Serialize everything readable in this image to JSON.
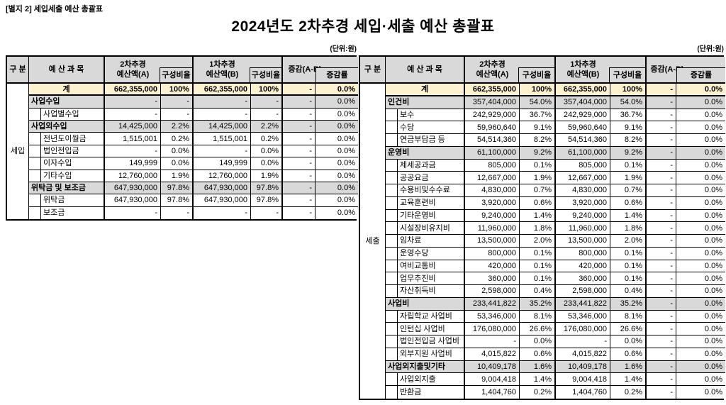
{
  "page": {
    "doc_ref": "[별지 2] 세입세출 예산 총괄표",
    "title": "2024년도 2차추경 세입·세출 예산 총괄표",
    "unit_label": "(단위:원)"
  },
  "colors": {
    "header_bg": "#d9d9d9",
    "group_row_bg": "#d9d9d9",
    "total_row_bg": "#fdf2cf",
    "border": "#000000"
  },
  "header_labels": {
    "gubun": "구 분",
    "category": "예 산 과 목",
    "col_a_line1": "2차추경",
    "col_a_line2": "예산액(A)",
    "ratio": "구성비율",
    "col_b_line1": "1차추경",
    "col_b_line2": "예산액(B)",
    "diff": "증감(A-B)",
    "diff_rate": "증감률"
  },
  "tables": [
    {
      "id": "revenue",
      "gubun": "세입",
      "rows": [
        {
          "type": "total",
          "label": "계",
          "a": "662,355,000",
          "ar": "100%",
          "b": "662,355,000",
          "br": "100%",
          "diff": "-",
          "rate": "0.0%"
        },
        {
          "type": "group",
          "label": "사업수입",
          "a": "-",
          "ar": "-",
          "b": "-",
          "br": "-",
          "diff": "-",
          "rate": "0.0%"
        },
        {
          "type": "child",
          "label": "사업별수입",
          "a": "-",
          "ar": "-",
          "b": "-",
          "br": "-",
          "diff": "-",
          "rate": "0.0%"
        },
        {
          "type": "group",
          "label": "사업외수입",
          "a": "14,425,000",
          "ar": "2.2%",
          "b": "14,425,000",
          "br": "2.2%",
          "diff": "-",
          "rate": "0.0%"
        },
        {
          "type": "child",
          "label": "전년도이월금",
          "a": "1,515,001",
          "ar": "0.2%",
          "b": "1,515,001",
          "br": "0.2%",
          "diff": "-",
          "rate": "0.0%"
        },
        {
          "type": "child",
          "label": "법인전입금",
          "a": "-",
          "ar": "0.0%",
          "b": "-",
          "br": "0.0%",
          "diff": "-",
          "rate": "0.0%"
        },
        {
          "type": "child",
          "label": "이자수입",
          "a": "149,999",
          "ar": "0.0%",
          "b": "149,999",
          "br": "0.0%",
          "diff": "-",
          "rate": "0.0%"
        },
        {
          "type": "child",
          "label": "기타수입",
          "a": "12,760,000",
          "ar": "1.9%",
          "b": "12,760,000",
          "br": "1.9%",
          "diff": "-",
          "rate": "0.0%"
        },
        {
          "type": "group",
          "label": "위탁금 및 보조금",
          "a": "647,930,000",
          "ar": "97.8%",
          "b": "647,930,000",
          "br": "97.8%",
          "diff": "-",
          "rate": "0.0%"
        },
        {
          "type": "child",
          "label": "위탁금",
          "a": "647,930,000",
          "ar": "97.8%",
          "b": "647,930,000",
          "br": "97.8%",
          "diff": "-",
          "rate": "0.0%"
        },
        {
          "type": "child",
          "label": "보조금",
          "a": "-",
          "ar": "-",
          "b": "-",
          "br": "-",
          "diff": "-",
          "rate": "0.0%"
        }
      ]
    },
    {
      "id": "expenditure",
      "gubun": "세출",
      "rows": [
        {
          "type": "total",
          "label": "계",
          "a": "662,355,000",
          "ar": "100%",
          "b": "662,355,000",
          "br": "100%",
          "diff": "-",
          "rate": "0.0%"
        },
        {
          "type": "group",
          "label": "인건비",
          "a": "357,404,000",
          "ar": "54.0%",
          "b": "357,404,000",
          "br": "54.0%",
          "diff": "-",
          "rate": "0.0%"
        },
        {
          "type": "child",
          "label": "보수",
          "a": "242,929,000",
          "ar": "36.7%",
          "b": "242,929,000",
          "br": "36.7%",
          "diff": "-",
          "rate": "0.0%"
        },
        {
          "type": "child",
          "label": "수당",
          "a": "59,960,640",
          "ar": "9.1%",
          "b": "59,960,640",
          "br": "9.1%",
          "diff": "-",
          "rate": "0.0%"
        },
        {
          "type": "child",
          "label": "연금부담금 등",
          "a": "54,514,360",
          "ar": "8.2%",
          "b": "54,514,360",
          "br": "8.2%",
          "diff": "-",
          "rate": "0.0%"
        },
        {
          "type": "group",
          "label": "운영비",
          "a": "61,100,000",
          "ar": "9.2%",
          "b": "61,100,000",
          "br": "9.2%",
          "diff": "-",
          "rate": "0.0%"
        },
        {
          "type": "child",
          "label": "제세공과금",
          "a": "805,000",
          "ar": "0.1%",
          "b": "805,000",
          "br": "0.1%",
          "diff": "-",
          "rate": "0.0%"
        },
        {
          "type": "child",
          "label": "공공요금",
          "a": "12,667,000",
          "ar": "1.9%",
          "b": "12,667,000",
          "br": "1.9%",
          "diff": "-",
          "rate": "0.0%"
        },
        {
          "type": "child",
          "label": "수용비및수수료",
          "a": "4,830,000",
          "ar": "0.7%",
          "b": "4,830,000",
          "br": "0.7%",
          "diff": "-",
          "rate": "0.0%"
        },
        {
          "type": "child",
          "label": "교육훈련비",
          "a": "3,920,000",
          "ar": "0.6%",
          "b": "3,920,000",
          "br": "0.6%",
          "diff": "-",
          "rate": "0.0%"
        },
        {
          "type": "child",
          "label": "기타운영비",
          "a": "9,240,000",
          "ar": "1.4%",
          "b": "9,240,000",
          "br": "1.4%",
          "diff": "-",
          "rate": "0.0%"
        },
        {
          "type": "child",
          "label": "시설장비유지비",
          "a": "11,960,000",
          "ar": "1.8%",
          "b": "11,960,000",
          "br": "1.8%",
          "diff": "-",
          "rate": "0.0%"
        },
        {
          "type": "child",
          "label": "임차료",
          "a": "13,500,000",
          "ar": "2.0%",
          "b": "13,500,000",
          "br": "2.0%",
          "diff": "-",
          "rate": "0.0%"
        },
        {
          "type": "child",
          "label": "운영수당",
          "a": "800,000",
          "ar": "0.1%",
          "b": "800,000",
          "br": "0.1%",
          "diff": "-",
          "rate": "0.0%"
        },
        {
          "type": "child",
          "label": "여비교통비",
          "a": "420,000",
          "ar": "0.1%",
          "b": "420,000",
          "br": "0.1%",
          "diff": "-",
          "rate": "0.0%"
        },
        {
          "type": "child",
          "label": "업무추진비",
          "a": "360,000",
          "ar": "0.1%",
          "b": "360,000",
          "br": "0.1%",
          "diff": "-",
          "rate": "0.0%"
        },
        {
          "type": "child",
          "label": "자산취득비",
          "a": "2,598,000",
          "ar": "0.4%",
          "b": "2,598,000",
          "br": "0.4%",
          "diff": "-",
          "rate": "0.0%"
        },
        {
          "type": "group",
          "label": "사업비",
          "a": "233,441,822",
          "ar": "35.2%",
          "b": "233,441,822",
          "br": "35.2%",
          "diff": "-",
          "rate": "0.0%"
        },
        {
          "type": "child",
          "label": "자립학교 사업비",
          "a": "53,346,000",
          "ar": "8.1%",
          "b": "53,346,000",
          "br": "8.1%",
          "diff": "-",
          "rate": "0.0%"
        },
        {
          "type": "child",
          "label": "인턴십 사업비",
          "a": "176,080,000",
          "ar": "26.6%",
          "b": "176,080,000",
          "br": "26.6%",
          "diff": "-",
          "rate": "0.0%"
        },
        {
          "type": "child",
          "label": "법인전입금 사업비",
          "a": "-",
          "ar": "0.0%",
          "b": "-",
          "br": "0.0%",
          "diff": "-",
          "rate": "0.0%"
        },
        {
          "type": "child",
          "label": "외부지원 사업비",
          "a": "4,015,822",
          "ar": "0.6%",
          "b": "4,015,822",
          "br": "0.6%",
          "diff": "-",
          "rate": "0.0%"
        },
        {
          "type": "group",
          "label": "사업외지출및기타",
          "a": "10,409,178",
          "ar": "1.6%",
          "b": "10,409,178",
          "br": "1.6%",
          "diff": "-",
          "rate": "0.0%"
        },
        {
          "type": "child",
          "label": "사업외지출",
          "a": "9,004,418",
          "ar": "1.4%",
          "b": "9,004,418",
          "br": "1.4%",
          "diff": "-",
          "rate": "0.0%"
        },
        {
          "type": "child",
          "label": "반환금",
          "a": "1,404,760",
          "ar": "0.2%",
          "b": "1,404,760",
          "br": "0.2%",
          "diff": "-",
          "rate": "0.0%"
        }
      ]
    }
  ]
}
